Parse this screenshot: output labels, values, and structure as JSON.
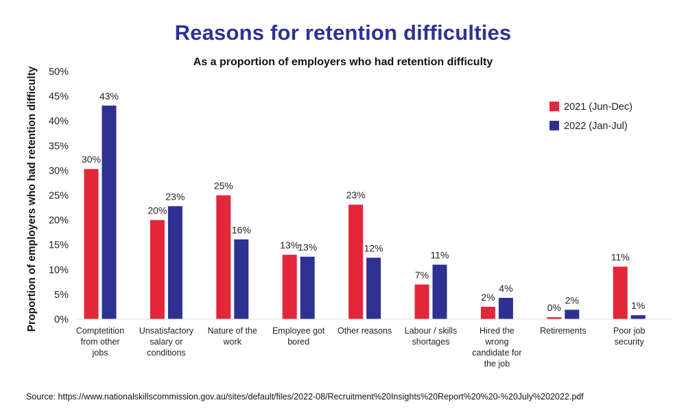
{
  "title": "Reasons for retention difficulties",
  "subtitle": "As a proportion of employers who had retention difficulty",
  "source": "Source: https://www.nationalskillscommission.gov.au/sites/default/files/2022-08/Recruitment%20Insights%20Report%20%20-%20July%202022.pdf",
  "colors": {
    "title": "#2e3192",
    "series_2021": "#e3263a",
    "series_2022": "#2e3192"
  },
  "chart_data": {
    "type": "bar",
    "title": "Reasons for retention difficulties",
    "subtitle": "As a proportion of employers who had retention difficulty",
    "xlabel": "",
    "ylabel": "Proportion of employers who had retention difficulty",
    "ylim": [
      0,
      50
    ],
    "yticks": [
      "0%",
      "5%",
      "10%",
      "15%",
      "20%",
      "25%",
      "30%",
      "35%",
      "40%",
      "45%",
      "50%"
    ],
    "grid": false,
    "legend_position": "top-right",
    "categories": [
      [
        "Comptetition",
        "from other",
        "jobs"
      ],
      [
        "Unsatisfactory",
        "salary or",
        "conditions"
      ],
      [
        "Nature of the",
        "work"
      ],
      [
        "Employee got",
        "bored"
      ],
      [
        "Other reasons"
      ],
      [
        "Labour / skills",
        "shortages"
      ],
      [
        "Hired the",
        "wrong",
        "candidate for",
        "the job"
      ],
      [
        "Retirements"
      ],
      [
        "Poor job",
        "security"
      ]
    ],
    "series": [
      {
        "name": "2021 (Jun-Dec)",
        "color": "#e3263a",
        "values": [
          30.3,
          20.0,
          25.0,
          13.0,
          23.1,
          7.0,
          2.5,
          0.4,
          10.6
        ],
        "labels": [
          "30%",
          "20%",
          "25%",
          "13%",
          "23%",
          "7%",
          "2%",
          "0%",
          "11%"
        ]
      },
      {
        "name": "2022 (Jan-Jul)",
        "color": "#2e3192",
        "values": [
          43.1,
          22.8,
          16.1,
          12.6,
          12.4,
          11.0,
          4.3,
          1.9,
          0.8
        ],
        "labels": [
          "43%",
          "23%",
          "16%",
          "13%",
          "12%",
          "11%",
          "4%",
          "2%",
          "1%"
        ]
      }
    ]
  }
}
